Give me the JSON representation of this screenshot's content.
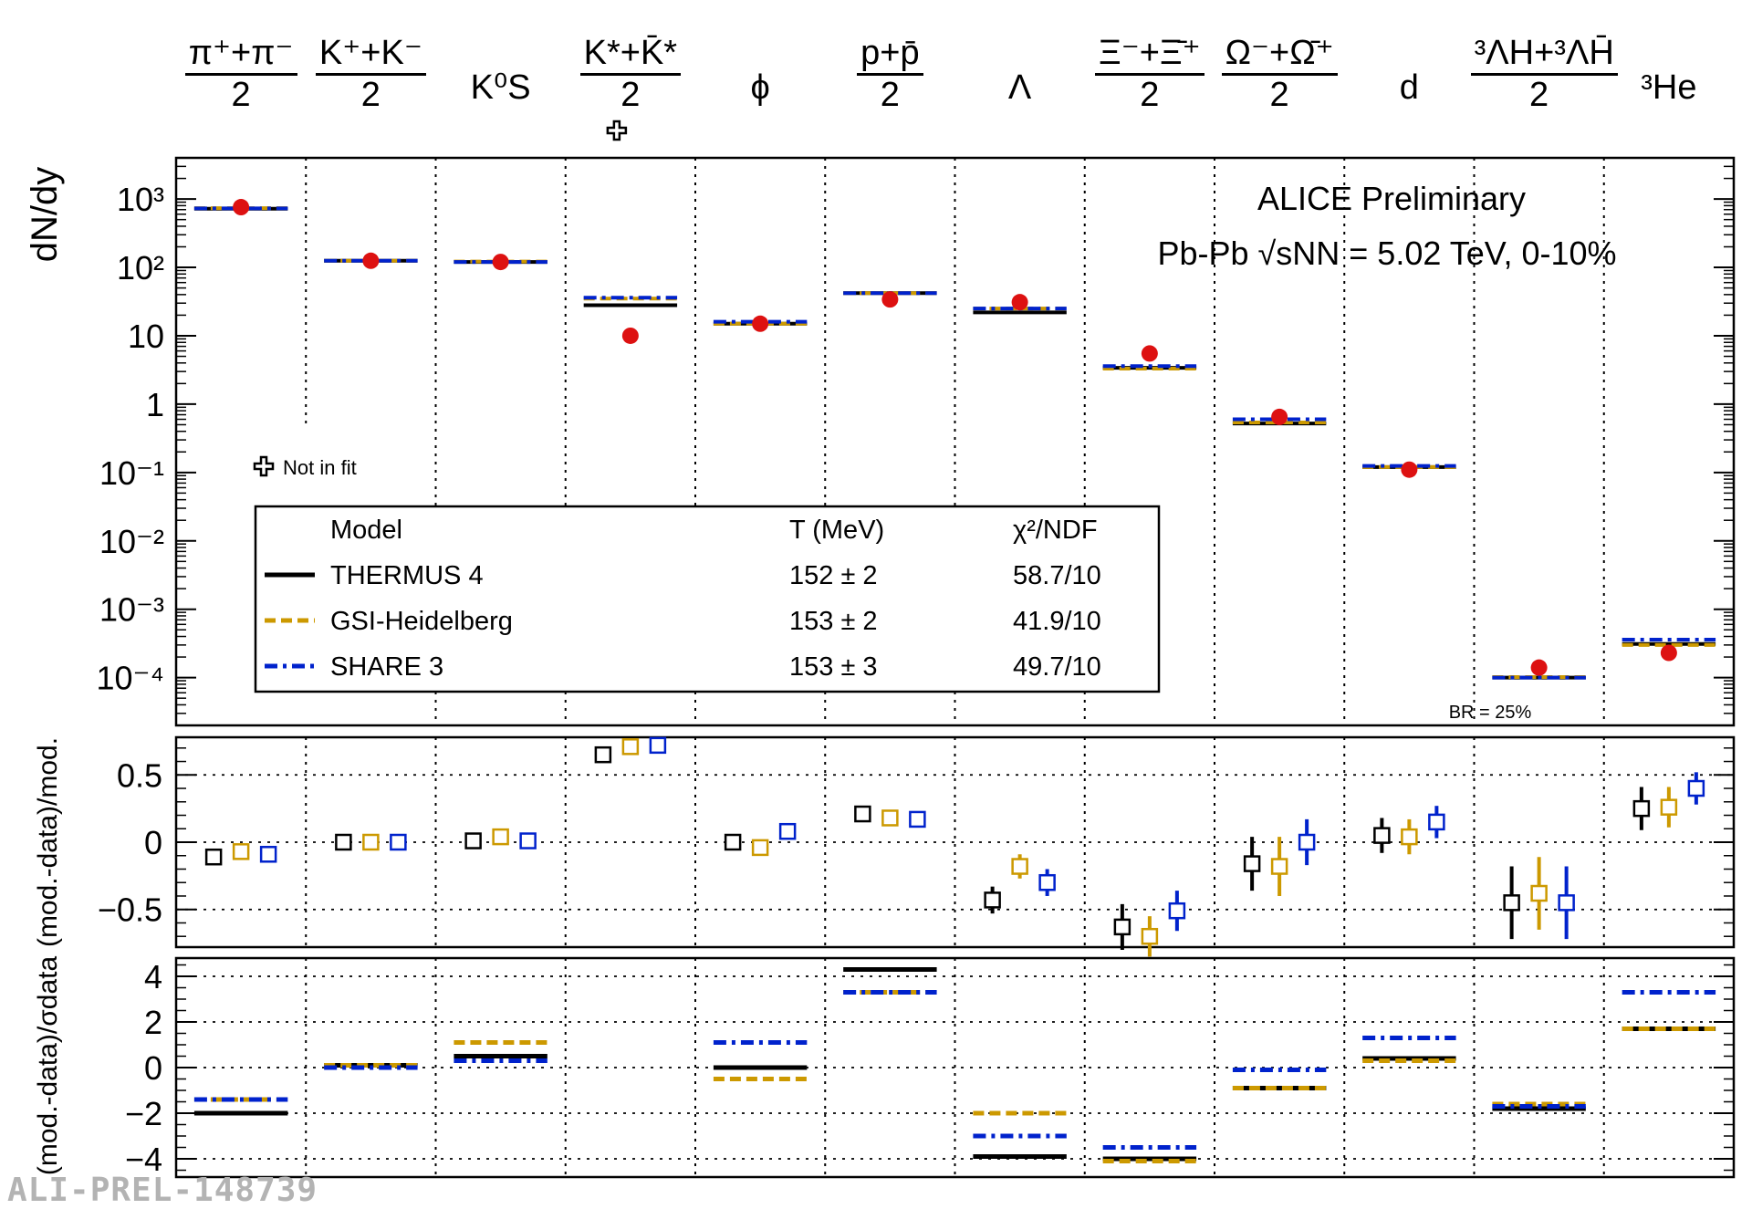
{
  "species": [
    {
      "num": "π⁺+π⁻",
      "den": "2",
      "not_in_fit": false
    },
    {
      "num": "K⁺+K⁻",
      "den": "2",
      "not_in_fit": false
    },
    {
      "num": "K⁰S",
      "den": "",
      "not_in_fit": false
    },
    {
      "num": "K*+K̄*",
      "den": "2",
      "not_in_fit": true
    },
    {
      "num": "ϕ",
      "den": "",
      "not_in_fit": false
    },
    {
      "num": "p+p̄",
      "den": "2",
      "not_in_fit": false
    },
    {
      "num": "Λ",
      "den": "",
      "not_in_fit": false
    },
    {
      "num": "Ξ⁻+Ξ̄⁺",
      "den": "2",
      "not_in_fit": false
    },
    {
      "num": "Ω⁻+Ω̄⁺",
      "den": "2",
      "not_in_fit": false
    },
    {
      "num": "d",
      "den": "",
      "not_in_fit": false
    },
    {
      "num": "³ΛH+³ΛH̄",
      "den": "2",
      "not_in_fit": false
    },
    {
      "num": "³He",
      "den": "",
      "not_in_fit": false
    }
  ],
  "annotations": {
    "experiment": "ALICE Preliminary",
    "system": "Pb-Pb  √sNN = 5.02 TeV, 0-10%",
    "not_in_fit": "Not in fit",
    "br_note": "BR = 25%",
    "watermark": "ALI-PREL-148739"
  },
  "legend": {
    "headers": [
      "Model",
      "T (MeV)",
      "χ²/NDF"
    ],
    "rows": [
      {
        "model": "THERMUS 4",
        "T": "152 ± 2",
        "chi2": "58.7/10",
        "color": "#000000",
        "style": "solid"
      },
      {
        "model": "GSI-Heidelberg",
        "T": "153 ± 2",
        "chi2": "41.9/10",
        "color": "#cc9900",
        "style": "dashed"
      },
      {
        "model": "SHARE 3",
        "T": "153 ± 3",
        "chi2": "49.7/10",
        "color": "#0022cc",
        "style": "dashdot"
      }
    ]
  },
  "chart_data": [
    {
      "type": "scatter",
      "ylabel": "dN/dy",
      "yscale": "log",
      "ylim": [
        2e-05,
        4000
      ],
      "yticks": [
        "10⁻⁴",
        "10⁻³",
        "10⁻²",
        "10⁻¹",
        "1",
        "10",
        "10²",
        "10³"
      ],
      "series": [
        {
          "name": "data",
          "color": "#dd1111",
          "values": [
            760,
            125,
            120,
            10,
            15,
            34,
            31,
            5.5,
            0.65,
            0.11,
            0.00014,
            0.00023
          ]
        },
        {
          "name": "THERMUS 4",
          "color": "#000000",
          "values": [
            720,
            125,
            120,
            28,
            15,
            42,
            22,
            3.4,
            0.52,
            0.12,
            0.0001,
            0.00031
          ]
        },
        {
          "name": "GSI-Heidelberg",
          "color": "#cc9900",
          "values": [
            735,
            125,
            122,
            35,
            15,
            42,
            25,
            3.3,
            0.54,
            0.12,
            0.000102,
            0.0003
          ]
        },
        {
          "name": "SHARE 3",
          "color": "#0022cc",
          "values": [
            730,
            125,
            120,
            36,
            16,
            42,
            25,
            3.6,
            0.6,
            0.125,
            0.0001,
            0.00036
          ]
        }
      ]
    },
    {
      "type": "scatter",
      "ylabel": "(mod.-data)/mod.",
      "ylim": [
        -0.78,
        0.78
      ],
      "yticks": [
        "−0.5",
        "0",
        "0.5"
      ],
      "series": [
        {
          "name": "THERMUS 4",
          "color": "#000000",
          "values": [
            -0.11,
            0.0,
            0.01,
            0.65,
            0.0,
            0.21,
            -0.43,
            -0.63,
            -0.16,
            0.05,
            -0.45,
            0.25
          ],
          "errors": [
            0.0,
            0.0,
            0.0,
            0.0,
            0.05,
            0.0,
            0.1,
            0.17,
            0.2,
            0.13,
            0.27,
            0.16
          ]
        },
        {
          "name": "GSI-Heidelberg",
          "color": "#cc9900",
          "values": [
            -0.07,
            0.0,
            0.04,
            0.71,
            -0.04,
            0.18,
            -0.18,
            -0.7,
            -0.18,
            0.04,
            -0.38,
            0.26
          ],
          "errors": [
            0.0,
            0.0,
            0.0,
            0.0,
            0.04,
            0.0,
            0.09,
            0.15,
            0.22,
            0.13,
            0.27,
            0.15
          ]
        },
        {
          "name": "SHARE 3",
          "color": "#0022cc",
          "values": [
            -0.09,
            0.0,
            0.01,
            0.72,
            0.08,
            0.17,
            -0.3,
            -0.51,
            0.0,
            0.15,
            -0.45,
            0.4
          ],
          "errors": [
            0.0,
            0.0,
            0.0,
            0.0,
            0.05,
            0.0,
            0.1,
            0.15,
            0.17,
            0.12,
            0.27,
            0.12
          ]
        }
      ]
    },
    {
      "type": "scatter",
      "ylabel": "(mod.-data)/σdata",
      "ylim": [
        -4.8,
        4.8
      ],
      "yticks": [
        "−4",
        "−2",
        "0",
        "2",
        "4"
      ],
      "series": [
        {
          "name": "THERMUS 4",
          "color": "#000000",
          "values": [
            -2.0,
            0.1,
            0.5,
            null,
            0.0,
            4.3,
            -3.9,
            -4.0,
            -0.9,
            0.4,
            -1.8,
            1.7
          ]
        },
        {
          "name": "GSI-Heidelberg",
          "color": "#cc9900",
          "values": [
            -1.4,
            0.1,
            1.1,
            null,
            -0.5,
            3.3,
            -2.0,
            -4.1,
            -0.9,
            0.3,
            -1.6,
            1.7
          ]
        },
        {
          "name": "SHARE 3",
          "color": "#0022cc",
          "values": [
            -1.4,
            0.0,
            0.3,
            null,
            1.1,
            3.3,
            -3.0,
            -3.5,
            -0.1,
            1.3,
            -1.7,
            3.3
          ]
        }
      ]
    }
  ]
}
